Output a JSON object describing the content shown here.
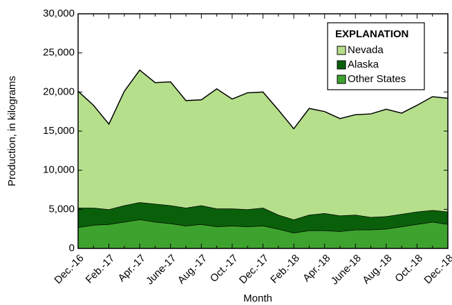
{
  "chart_data": {
    "type": "stacked_area",
    "x_label": "Month",
    "y_label": "Production, in kilograms",
    "legend_title": "EXPLANATION",
    "legend_position": "upper right",
    "categories": [
      "Dec.-16",
      null,
      "Feb.-17",
      null,
      "Apr.-17",
      null,
      "June-17",
      null,
      "Aug.-17",
      null,
      "Oct.-17",
      null,
      "Dec.-17",
      null,
      "Feb.-18",
      null,
      "Apr.-18",
      null,
      "June-18",
      null,
      "Aug.-18",
      null,
      "Oct.-18",
      null,
      "Dec.-18"
    ],
    "series": [
      {
        "name": "Other States",
        "color": "#3ea32e",
        "values": [
          2700,
          3000,
          3100,
          3400,
          3700,
          3400,
          3200,
          2900,
          3100,
          2800,
          2900,
          2800,
          2900,
          2500,
          2000,
          2300,
          2300,
          2200,
          2400,
          2400,
          2500,
          2800,
          3100,
          3400,
          3100
        ]
      },
      {
        "name": "Alaska",
        "color": "#0a600a",
        "values": [
          2500,
          2200,
          1900,
          2100,
          2200,
          2300,
          2300,
          2300,
          2400,
          2300,
          2200,
          2200,
          2300,
          1800,
          1700,
          2000,
          2200,
          2000,
          1900,
          1600,
          1600,
          1600,
          1600,
          1500,
          1600
        ]
      },
      {
        "name": "Nevada",
        "color": "#b6df8c",
        "values": [
          14900,
          13100,
          10900,
          14600,
          16900,
          15500,
          15800,
          13700,
          13500,
          15300,
          14000,
          14900,
          14800,
          13400,
          11600,
          13600,
          13000,
          12400,
          12800,
          13200,
          13700,
          12900,
          13600,
          14500,
          14500
        ]
      }
    ],
    "ylim": [
      0,
      30000
    ],
    "yticks": [
      0,
      {
        "value": 5000,
        "label": "5,000"
      },
      {
        "value": 10000,
        "label": "10,000"
      },
      {
        "value": 15000,
        "label": "15,000"
      },
      {
        "value": 20000,
        "label": "20,000"
      },
      {
        "value": 25000,
        "label": "25,000"
      },
      {
        "value": 30000,
        "label": "30,000"
      }
    ]
  }
}
